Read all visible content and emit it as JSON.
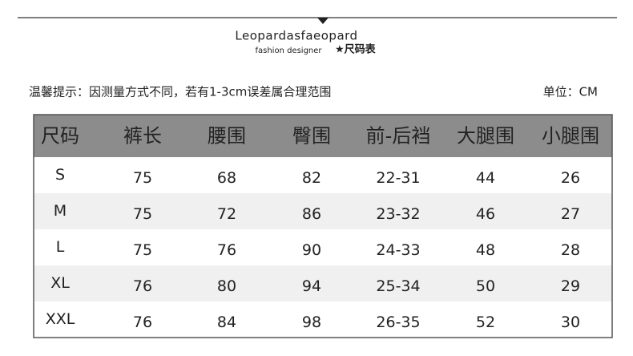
{
  "header": {
    "brand": "Leopardasfaeopard",
    "subtitle": "fashion designer",
    "chart_name": "★尺码表"
  },
  "note": {
    "left": "温馨提示：因测量方式不同，若有1-3cm误差属合理范围",
    "right": "单位：CM"
  },
  "table": {
    "columns": [
      "尺码",
      "裤长",
      "腰围",
      "臀围",
      "前-后裆",
      "大腿围",
      "小腿围"
    ],
    "rows": [
      [
        "S",
        75,
        68,
        82,
        "22-31",
        44,
        26
      ],
      [
        "M",
        75,
        72,
        86,
        "23-32",
        46,
        27
      ],
      [
        "L",
        75,
        76,
        90,
        "24-33",
        48,
        28
      ],
      [
        "XL",
        76,
        80,
        94,
        "25-34",
        50,
        29
      ],
      [
        "XXL",
        76,
        84,
        98,
        "26-35",
        52,
        30
      ]
    ]
  }
}
